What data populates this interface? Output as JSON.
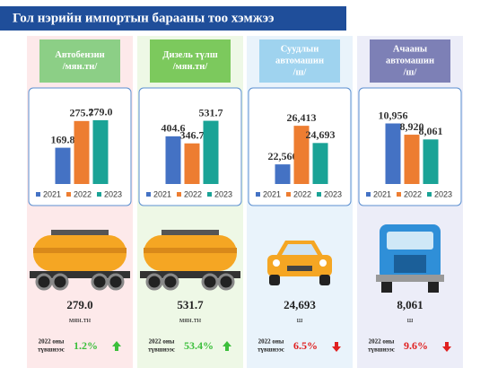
{
  "title": "Гол нэрийн импортын барааны тоо хэмжээ",
  "chart_data": [
    {
      "type": "bar",
      "title": [
        "Автобензин",
        "/мян.тн/"
      ],
      "header_color": "#8ccf86",
      "background": "#fde9ea",
      "categories": [
        "2021",
        "2022",
        "2023"
      ],
      "colors": [
        "#4472c4",
        "#ed7d31",
        "#1aa396"
      ],
      "values": [
        169.8,
        275.7,
        279.0
      ],
      "value_labels": [
        "169.8",
        "275.7",
        "279.0"
      ],
      "ylim": [
        26,
        300
      ],
      "total": {
        "value": 279.0,
        "label": "279.0"
      },
      "unit": "мян.тн",
      "change": {
        "label": [
          "2022 оны",
          "түвшнээс"
        ],
        "value": 1.2,
        "value_label": "1.2%",
        "direction": "up"
      }
    },
    {
      "type": "bar",
      "title": [
        "Дизель түлш",
        "/мян.тн/"
      ],
      "header_color": "#7cc95d",
      "background": "#eef8e6",
      "categories": [
        "2021",
        "2022",
        "2023"
      ],
      "colors": [
        "#4472c4",
        "#ed7d31",
        "#1aa396"
      ],
      "values": [
        404.6,
        346.7,
        531.7
      ],
      "value_labels": [
        "404.6",
        "346.7",
        "531.7"
      ],
      "ylim": [
        14,
        580
      ],
      "total": {
        "value": 531.7,
        "label": "531.7"
      },
      "unit": "мян.тн",
      "change": {
        "label": [
          "2022 оны",
          "түвшнээс"
        ],
        "value": 53.4,
        "value_label": "53.4%",
        "direction": "up"
      }
    },
    {
      "type": "bar",
      "title": [
        "Суудлын",
        "автомашин",
        "/ш/"
      ],
      "header_color": "#9fd3ef",
      "background": "#e9f3fb",
      "categories": [
        "2021",
        "2022",
        "2023"
      ],
      "colors": [
        "#4472c4",
        "#ed7d31",
        "#1aa396"
      ],
      "values": [
        22560,
        26413,
        24693
      ],
      "value_labels": [
        "22,560",
        "26,413",
        "24,693"
      ],
      "ylim": [
        20600,
        27500
      ],
      "total": {
        "value": 24693,
        "label": "24,693"
      },
      "unit": "ш",
      "change": {
        "label": [
          "2022 оны",
          "түвшнээс"
        ],
        "value": -6.5,
        "value_label": "6.5%",
        "direction": "down"
      }
    },
    {
      "type": "bar",
      "title": [
        "Ачааны",
        "автомашин",
        "/ш/"
      ],
      "header_color": "#7d80b6",
      "background": "#ecedf8",
      "categories": [
        "2021",
        "2022",
        "2023"
      ],
      "colors": [
        "#4472c4",
        "#ed7d31",
        "#1aa396"
      ],
      "values": [
        10956,
        8920,
        8061
      ],
      "value_labels": [
        "10,956",
        "8,920",
        "8,061"
      ],
      "ylim": [
        0,
        12500
      ],
      "total": {
        "value": 8061,
        "label": "8,061"
      },
      "unit": "ш",
      "change": {
        "label": [
          "2022 оны",
          "түвшнээс"
        ],
        "value": -9.6,
        "value_label": "9.6%",
        "direction": "down"
      }
    }
  ]
}
